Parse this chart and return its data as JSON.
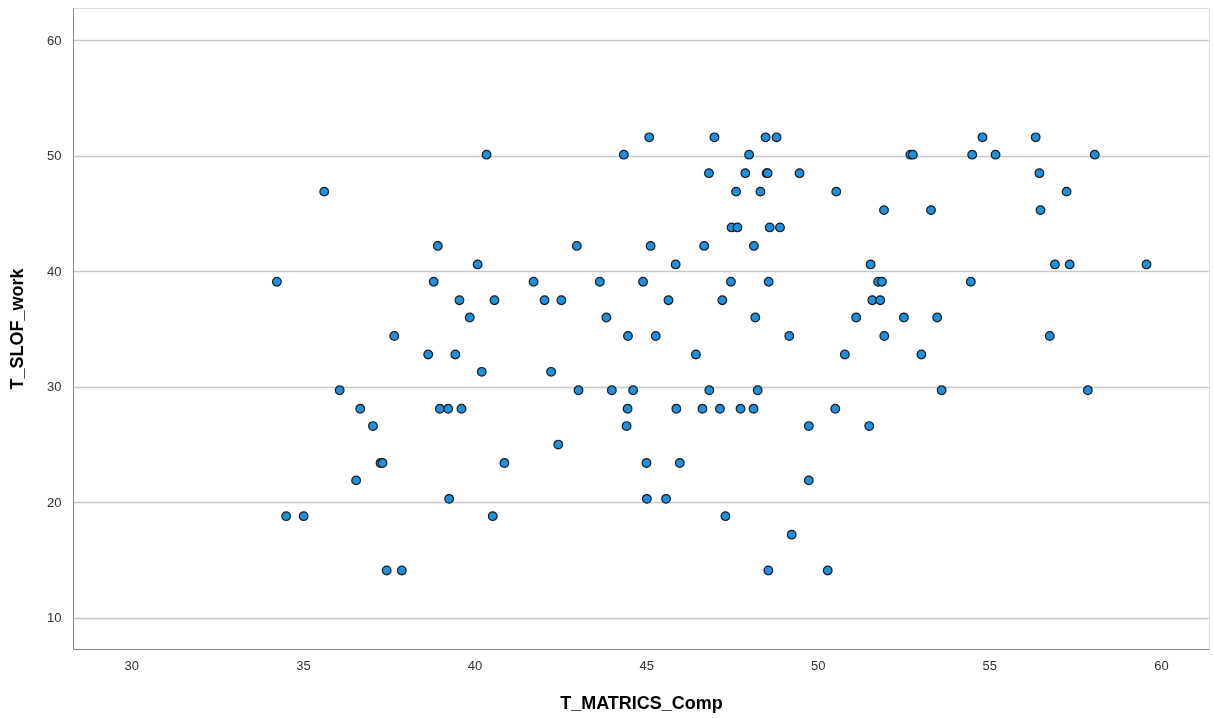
{
  "chart_data": {
    "type": "scatter",
    "xlabel": "T_MATRICS_Comp",
    "ylabel": "T_SLOF_work",
    "xlim": [
      28.3,
      61.4
    ],
    "ylim": [
      7.3,
      62.8
    ],
    "xticks": [
      30,
      35,
      40,
      45,
      50,
      55,
      60
    ],
    "yticks": [
      10,
      20,
      30,
      40,
      50,
      60
    ],
    "grid": "y",
    "marker": "circle",
    "series": [
      {
        "color": "#1e90e0",
        "x": [
          45.09,
          46.99,
          48.48,
          48.8,
          54.8,
          56.35,
          40.35,
          44.35,
          48.0,
          52.7,
          52.77,
          54.5,
          55.18,
          58.07,
          46.83,
          47.89,
          48.51,
          48.54,
          49.47,
          56.46,
          47.62,
          48.33,
          35.62,
          50.54,
          57.25,
          51.93,
          53.3,
          56.49,
          47.49,
          47.66,
          48.6,
          48.9,
          38.93,
          42.98,
          45.13,
          46.69,
          48.14,
          40.09,
          45.86,
          51.54,
          56.91,
          57.34,
          59.58,
          34.24,
          38.81,
          41.72,
          43.65,
          44.91,
          47.47,
          48.57,
          51.76,
          51.87,
          54.46,
          39.56,
          40.58,
          42.04,
          42.53,
          45.65,
          47.22,
          51.59,
          51.82,
          39.86,
          43.84,
          48.18,
          51.12,
          52.51,
          53.48,
          37.66,
          44.47,
          45.28,
          49.17,
          51.94,
          56.76,
          38.65,
          39.44,
          46.45,
          50.79,
          53.02,
          40.21,
          42.23,
          36.07,
          43.03,
          44.0,
          44.62,
          46.84,
          48.25,
          53.61,
          57.87,
          36.67,
          38.99,
          39.23,
          39.62,
          44.46,
          45.88,
          46.64,
          47.15,
          47.75,
          48.13,
          50.51,
          37.04,
          44.43,
          49.74,
          51.5,
          42.44,
          37.26,
          37.32,
          40.87,
          45.01,
          45.98,
          36.55,
          49.74,
          39.26,
          45.02,
          45.58,
          34.51,
          35.02,
          40.53,
          47.31,
          49.24,
          37.44,
          37.88,
          48.56,
          50.29
        ],
        "values": [
          51.6,
          51.6,
          51.6,
          51.6,
          51.6,
          51.6,
          50.1,
          50.1,
          50.1,
          50.1,
          50.1,
          50.1,
          50.1,
          50.1,
          48.5,
          48.5,
          48.5,
          48.5,
          48.5,
          48.5,
          46.9,
          46.9,
          46.9,
          46.9,
          46.9,
          45.3,
          45.3,
          45.3,
          43.8,
          43.8,
          43.8,
          43.8,
          42.2,
          42.2,
          42.2,
          42.2,
          42.2,
          40.6,
          40.6,
          40.6,
          40.6,
          40.6,
          40.6,
          39.1,
          39.1,
          39.1,
          39.1,
          39.1,
          39.1,
          39.1,
          39.1,
          39.1,
          39.1,
          37.5,
          37.5,
          37.5,
          37.5,
          37.5,
          37.5,
          37.5,
          37.5,
          36.0,
          36.0,
          36.0,
          36.0,
          36.0,
          36.0,
          34.4,
          34.4,
          34.4,
          34.4,
          34.4,
          34.4,
          32.8,
          32.8,
          32.8,
          32.8,
          32.8,
          31.3,
          31.3,
          29.7,
          29.7,
          29.7,
          29.7,
          29.7,
          29.7,
          29.7,
          29.7,
          28.1,
          28.1,
          28.1,
          28.1,
          28.1,
          28.1,
          28.1,
          28.1,
          28.1,
          28.1,
          28.1,
          26.6,
          26.6,
          26.6,
          26.6,
          25.0,
          23.4,
          23.4,
          23.4,
          23.4,
          23.4,
          21.9,
          21.9,
          20.3,
          20.3,
          20.3,
          18.8,
          18.8,
          18.8,
          18.8,
          17.2,
          14.1,
          14.1,
          14.1,
          14.1
        ]
      }
    ]
  }
}
